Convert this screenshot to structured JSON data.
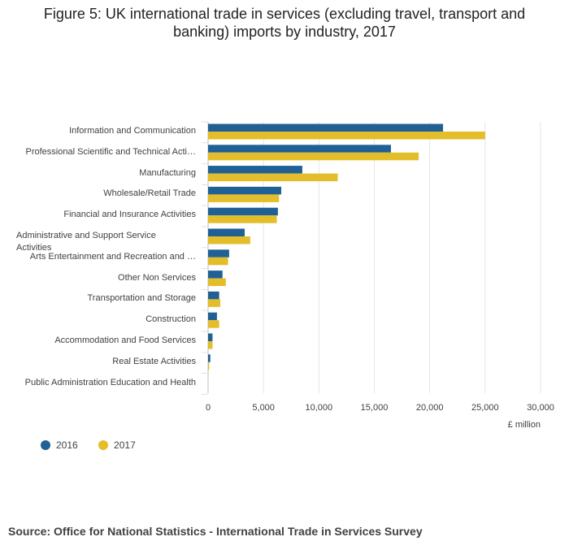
{
  "title": "Figure 5: UK international trade in services (excluding travel, transport and banking) imports by industry, 2017",
  "source": "Source: Office for National Statistics - International Trade in Services Survey",
  "colors": {
    "s2016": "#206095",
    "s2017": "#e3bd2a"
  },
  "chart_data": {
    "type": "bar",
    "orientation": "horizontal",
    "categories": [
      "Information and Communication",
      "Professional Scientific and Technical Acti…",
      "Manufacturing",
      "Wholesale/Retail Trade",
      "Financial and Insurance Activities",
      "Administrative and Support Service Activities",
      "Arts Entertainment and Recreation and …",
      "Other Non Services",
      "Transportation and Storage",
      "Construction",
      "Accommodation and Food Services",
      "Real Estate Activities",
      "Public Administration Education and Health"
    ],
    "series": [
      {
        "name": "2016",
        "values": [
          21200,
          16500,
          8500,
          6600,
          6300,
          3300,
          1900,
          1300,
          1000,
          800,
          400,
          200,
          0
        ]
      },
      {
        "name": "2017",
        "values": [
          25000,
          19000,
          11700,
          6400,
          6200,
          3800,
          1800,
          1600,
          1100,
          1000,
          400,
          100,
          0
        ]
      }
    ],
    "xlim": [
      0,
      30000
    ],
    "xticks": [
      0,
      5000,
      10000,
      15000,
      20000,
      25000,
      30000
    ],
    "xtick_labels": [
      "0",
      "5,000",
      "10,000",
      "15,000",
      "20,000",
      "25,000",
      "30,000"
    ],
    "xlabel": "£ million",
    "grid": true,
    "legend_position": "bottom-left"
  }
}
